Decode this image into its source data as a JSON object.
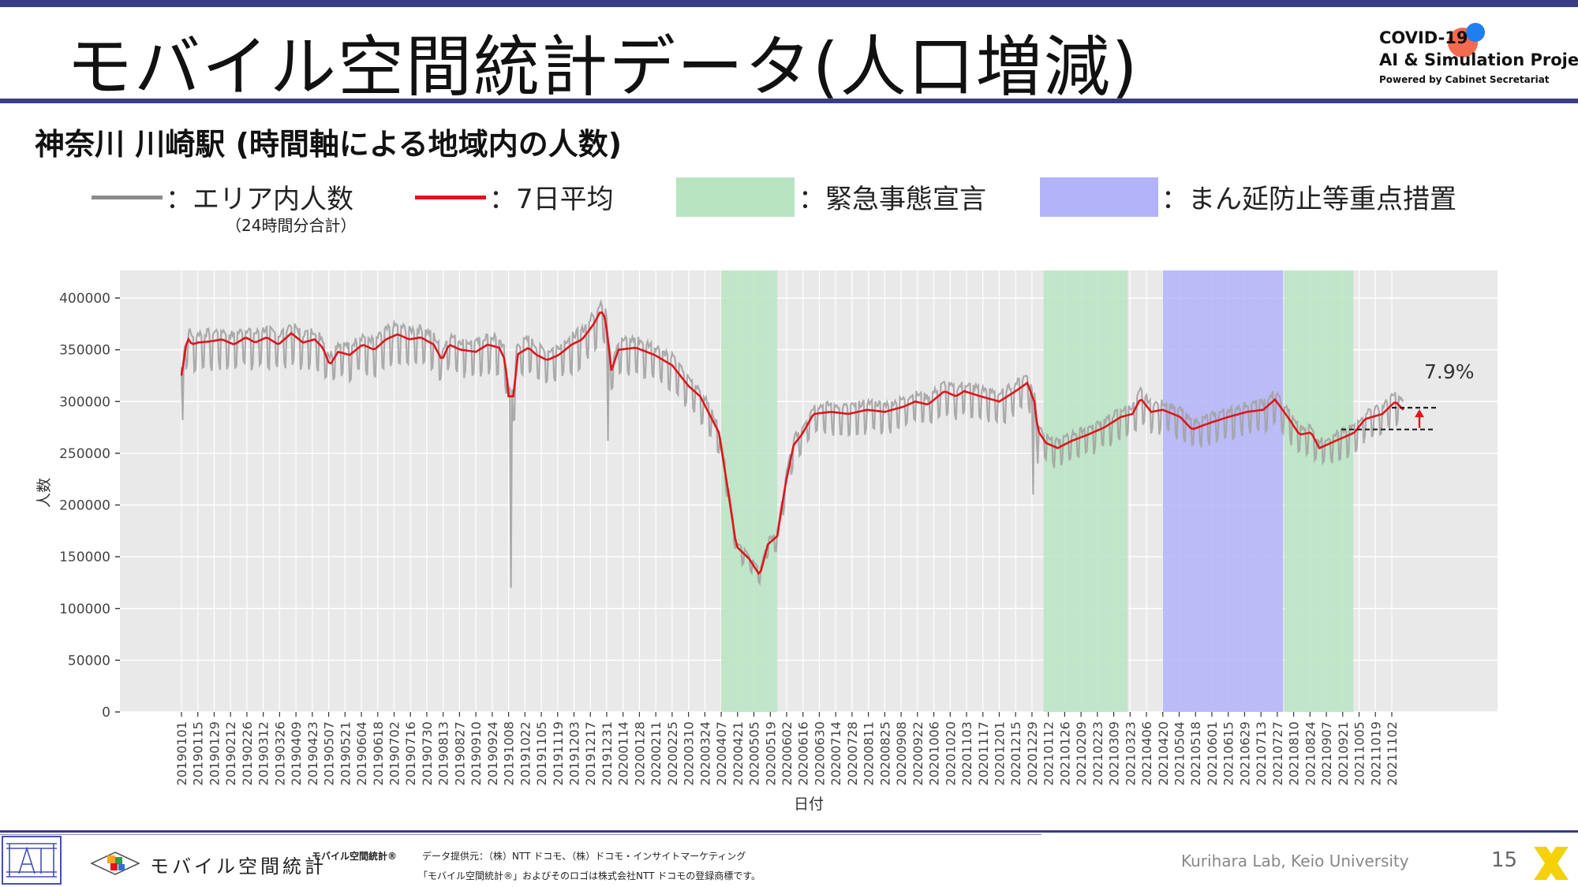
{
  "header": {
    "title": "モバイル空間統計データ(人口増減)",
    "logo_line1": "COVID-19",
    "logo_line2": "AI & Simulation Project",
    "logo_line3": "Powered by Cabinet Secretariat"
  },
  "subtitle": "神奈川 川崎駅 (時間軸による地域内の人数)",
  "legend": {
    "items": [
      {
        "label": "：エリア内人数",
        "note": "（24時間分合計）",
        "color": "#8c8c8c"
      },
      {
        "label": "：7日平均",
        "color": "#e0141b"
      },
      {
        "label": "：緊急事態宣言",
        "color": "#b9e4c2"
      },
      {
        "label": "：まん延防止等重点措置",
        "color": "#b3b3f9"
      }
    ]
  },
  "chart_data": {
    "type": "line",
    "xlabel": "日付",
    "ylabel": "人数",
    "ylim": [
      0,
      400000
    ],
    "yticks": [
      "0",
      "50000",
      "100000",
      "150000",
      "200000",
      "250000",
      "300000",
      "350000",
      "400000"
    ],
    "x_tick_labels": [
      "20190101",
      "20190115",
      "20190129",
      "20190212",
      "20190226",
      "20190312",
      "20190326",
      "20190409",
      "20190423",
      "20190507",
      "20190521",
      "20190604",
      "20190618",
      "20190702",
      "20190716",
      "20190730",
      "20190813",
      "20190827",
      "20190910",
      "20190924",
      "20191008",
      "20191022",
      "20191105",
      "20191119",
      "20191203",
      "20191217",
      "20191231",
      "20200114",
      "20200128",
      "20200211",
      "20200225",
      "20200310",
      "20200324",
      "20200407",
      "20200421",
      "20200505",
      "20200519",
      "20200602",
      "20200616",
      "20200630",
      "20200714",
      "20200728",
      "20200811",
      "20200825",
      "20200908",
      "20200922",
      "20201006",
      "20201020",
      "20201103",
      "20201117",
      "20201201",
      "20201215",
      "20201229",
      "20210112",
      "20210126",
      "20210209",
      "20210223",
      "20210309",
      "20210323",
      "20210406",
      "20210420",
      "20210504",
      "20210518",
      "20210601",
      "20210615",
      "20210629",
      "20210713",
      "20210727",
      "20210810",
      "20210824",
      "20210907",
      "20210921",
      "20211005",
      "20211019",
      "20211102"
    ],
    "grid": true,
    "shaded_periods": [
      {
        "type": "緊急事態宣言",
        "start": "20200407",
        "end": "20200525",
        "color": "#b9e4c2"
      },
      {
        "type": "緊急事態宣言",
        "start": "20210108",
        "end": "20210321",
        "color": "#b9e4c2"
      },
      {
        "type": "まん延防止等重点措置",
        "start": "20210420",
        "end": "20210801",
        "color": "#b3b3f9"
      },
      {
        "type": "緊急事態宣言",
        "start": "20210802",
        "end": "20210930",
        "color": "#b9e4c2"
      }
    ],
    "series": [
      {
        "name": "7日平均",
        "color": "#e0141b",
        "points": [
          [
            "20190101",
            325000
          ],
          [
            "20190103",
            340000
          ],
          [
            "20190106",
            362000
          ],
          [
            "20190110",
            355000
          ],
          [
            "20190115",
            357000
          ],
          [
            "20190125",
            358000
          ],
          [
            "20190205",
            360000
          ],
          [
            "20190215",
            355000
          ],
          [
            "20190225",
            362000
          ],
          [
            "20190305",
            357000
          ],
          [
            "20190315",
            362000
          ],
          [
            "20190325",
            355000
          ],
          [
            "20190405",
            366000
          ],
          [
            "20190415",
            357000
          ],
          [
            "20190425",
            360000
          ],
          [
            "20190502",
            352000
          ],
          [
            "20190508",
            335000
          ],
          [
            "20190515",
            348000
          ],
          [
            "20190525",
            345000
          ],
          [
            "20190605",
            355000
          ],
          [
            "20190615",
            350000
          ],
          [
            "20190625",
            360000
          ],
          [
            "20190705",
            365000
          ],
          [
            "20190715",
            360000
          ],
          [
            "20190725",
            362000
          ],
          [
            "20190805",
            355000
          ],
          [
            "20190812",
            340000
          ],
          [
            "20190818",
            355000
          ],
          [
            "20190828",
            350000
          ],
          [
            "20190910",
            348000
          ],
          [
            "20190920",
            355000
          ],
          [
            "20190930",
            352000
          ],
          [
            "20191005",
            340000
          ],
          [
            "20191008",
            305000
          ],
          [
            "20191013",
            305000
          ],
          [
            "20191015",
            345000
          ],
          [
            "20191025",
            352000
          ],
          [
            "20191101",
            345000
          ],
          [
            "20191110",
            340000
          ],
          [
            "20191120",
            345000
          ],
          [
            "20191201",
            355000
          ],
          [
            "20191210",
            360000
          ],
          [
            "20191220",
            375000
          ],
          [
            "20191226",
            388000
          ],
          [
            "20191230",
            380000
          ],
          [
            "20200104",
            330000
          ],
          [
            "20200110",
            350000
          ],
          [
            "20200125",
            352000
          ],
          [
            "20200210",
            345000
          ],
          [
            "20200225",
            335000
          ],
          [
            "20200310",
            315000
          ],
          [
            "20200320",
            305000
          ],
          [
            "20200405",
            270000
          ],
          [
            "20200412",
            220000
          ],
          [
            "20200420",
            160000
          ],
          [
            "20200501",
            148000
          ],
          [
            "20200510",
            132000
          ],
          [
            "20200517",
            162000
          ],
          [
            "20200525",
            170000
          ],
          [
            "20200601",
            220000
          ],
          [
            "20200608",
            258000
          ],
          [
            "20200615",
            268000
          ],
          [
            "20200625",
            288000
          ],
          [
            "20200710",
            290000
          ],
          [
            "20200725",
            288000
          ],
          [
            "20200810",
            292000
          ],
          [
            "20200825",
            290000
          ],
          [
            "20200910",
            295000
          ],
          [
            "20200920",
            300000
          ],
          [
            "20201001",
            297000
          ],
          [
            "20201015",
            310000
          ],
          [
            "20201025",
            305000
          ],
          [
            "20201101",
            310000
          ],
          [
            "20201115",
            305000
          ],
          [
            "20201201",
            300000
          ],
          [
            "20201215",
            310000
          ],
          [
            "20201225",
            318000
          ],
          [
            "20201231",
            300000
          ],
          [
            "20210103",
            272000
          ],
          [
            "20210110",
            260000
          ],
          [
            "20210120",
            255000
          ],
          [
            "20210201",
            262000
          ],
          [
            "20210215",
            268000
          ],
          [
            "20210301",
            275000
          ],
          [
            "20210315",
            285000
          ],
          [
            "20210325",
            288000
          ],
          [
            "20210401",
            303000
          ],
          [
            "20210410",
            290000
          ],
          [
            "20210420",
            292000
          ],
          [
            "20210505",
            285000
          ],
          [
            "20210515",
            273000
          ],
          [
            "20210601",
            280000
          ],
          [
            "20210615",
            285000
          ],
          [
            "20210701",
            290000
          ],
          [
            "20210715",
            292000
          ],
          [
            "20210725",
            302000
          ],
          [
            "20210805",
            285000
          ],
          [
            "20210815",
            268000
          ],
          [
            "20210825",
            270000
          ],
          [
            "20210901",
            255000
          ],
          [
            "20210915",
            262000
          ],
          [
            "20211001",
            270000
          ],
          [
            "20211010",
            283000
          ],
          [
            "20211025",
            288000
          ],
          [
            "20211105",
            300000
          ],
          [
            "20211112",
            292000
          ]
        ]
      }
    ],
    "annotation": {
      "text": "7.9%"
    }
  },
  "footer": {
    "app_name": "モバイル空間統計",
    "credit_title": "モバイル空間統計®",
    "credit_line1": "データ提供元：（株）NTT ドコモ、（株）ドコモ・インサイトマーケティング",
    "credit_line2": "「モバイル空間統計®」およびそのロゴは株式会社NTT ドコモの登録商標です。",
    "lab": "Kurihara Lab, Keio University",
    "page_number": "15"
  }
}
